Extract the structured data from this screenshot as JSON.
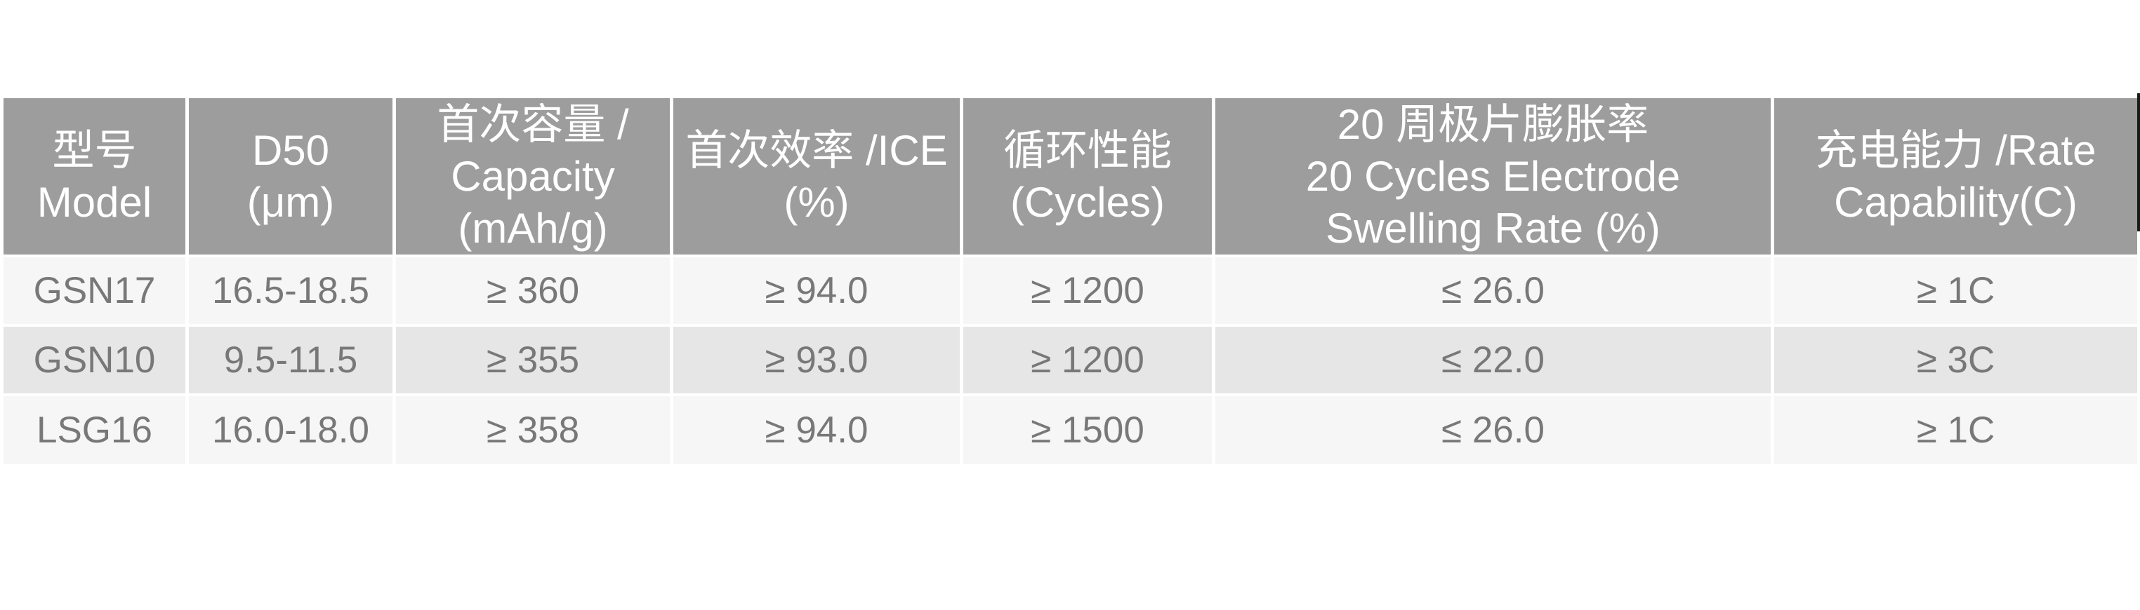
{
  "colors": {
    "header_bg": "#9d9d9d",
    "header_text": "#ffffff",
    "row_light_bg": "#f5f6f5",
    "row_dark_bg": "#e6e6e6",
    "data_text": "#787878",
    "separator": "#ffffff",
    "edge_mark": "#1a1a1a"
  },
  "table": {
    "headers": [
      {
        "key": "model",
        "lines": [
          "型号",
          "Model"
        ]
      },
      {
        "key": "d50",
        "lines": [
          "D50",
          "(μm)"
        ]
      },
      {
        "key": "capacity",
        "lines": [
          "首次容量 /",
          "Capacity",
          "(mAh/g)"
        ]
      },
      {
        "key": "ice",
        "lines": [
          "首次效率 /ICE",
          "(%)"
        ]
      },
      {
        "key": "cycles",
        "lines": [
          "循环性能",
          "(Cycles)"
        ]
      },
      {
        "key": "swelling",
        "lines": [
          "20 周极片膨胀率",
          "20 Cycles Electrode",
          "Swelling Rate (%)"
        ]
      },
      {
        "key": "rate",
        "lines": [
          "充电能力 /Rate",
          "Capability(C)"
        ]
      }
    ],
    "rows": [
      {
        "model": "GSN17",
        "d50": "16.5-18.5",
        "capacity": "≥ 360",
        "ice": "≥ 94.0",
        "cycles": "≥ 1200",
        "swelling": "≤ 26.0",
        "rate": "≥ 1C"
      },
      {
        "model": "GSN10",
        "d50": "9.5-11.5",
        "capacity": "≥ 355",
        "ice": "≥ 93.0",
        "cycles": "≥ 1200",
        "swelling": "≤ 22.0",
        "rate": "≥ 3C"
      },
      {
        "model": "LSG16",
        "d50": "16.0-18.0",
        "capacity": "≥ 358",
        "ice": "≥ 94.0",
        "cycles": "≥ 1500",
        "swelling": "≤ 26.0",
        "rate": "≥ 1C"
      }
    ]
  }
}
